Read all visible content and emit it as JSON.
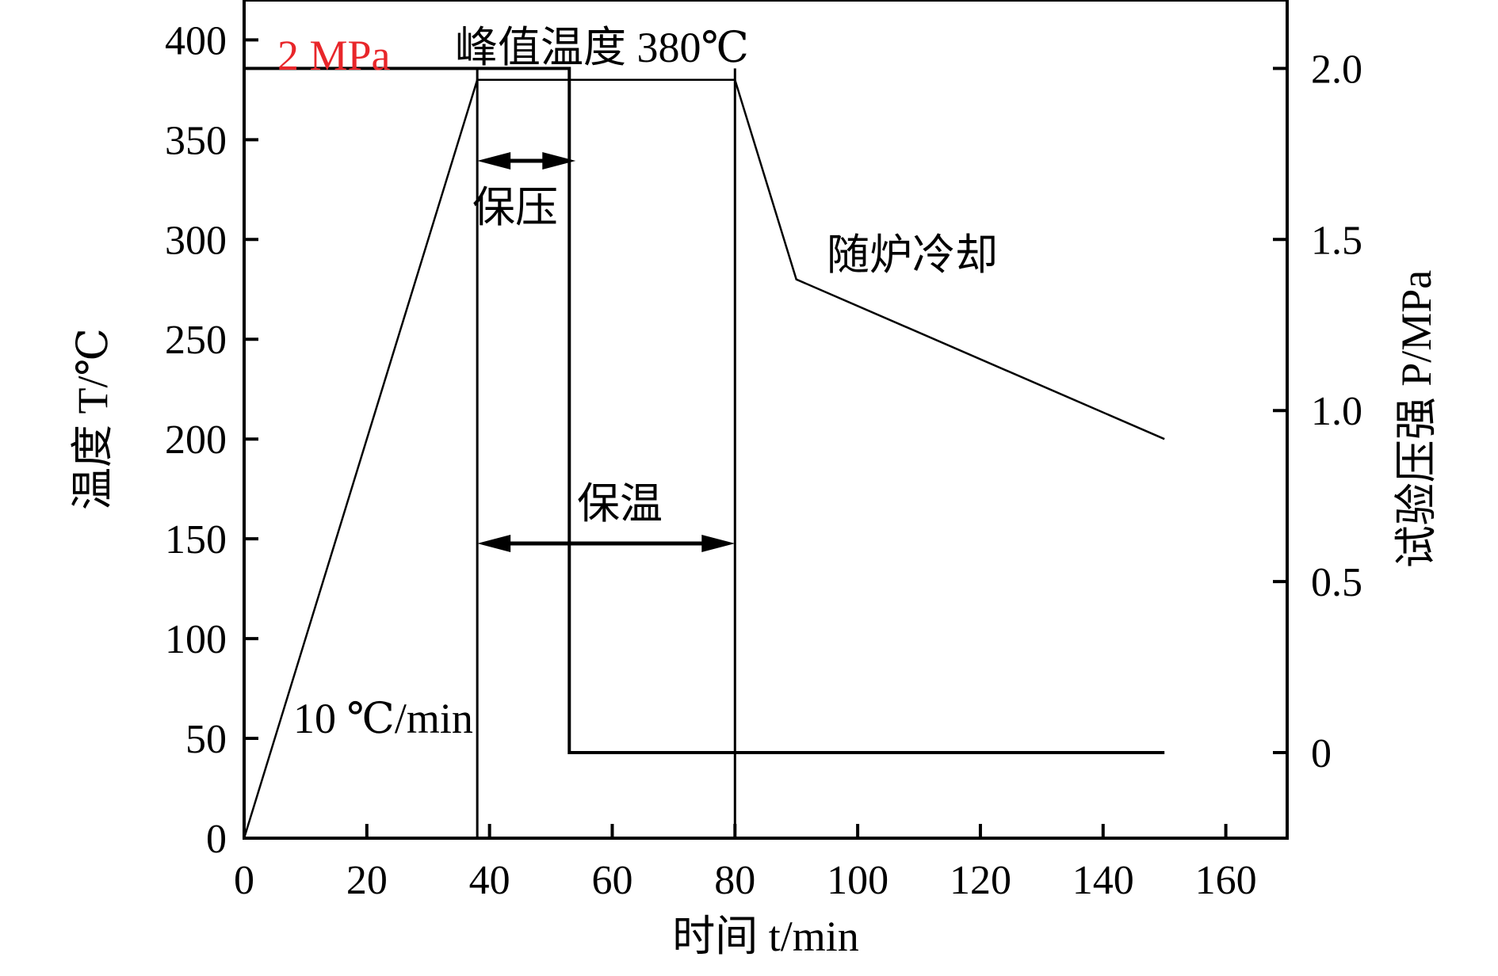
{
  "chart_data": {
    "type": "line",
    "xlabel": "时间 t/min",
    "ylabel": "温度 T/℃",
    "y2label": "试验压强 P/MPa",
    "xlim": [
      0,
      170
    ],
    "ylim": [
      0,
      420
    ],
    "y2lim": [
      -0.25,
      2.2
    ],
    "x_ticks": [
      0,
      20,
      40,
      60,
      80,
      100,
      120,
      140,
      160
    ],
    "y_ticks": [
      0,
      50,
      100,
      150,
      200,
      250,
      300,
      350,
      400
    ],
    "y2_ticks": [
      0,
      0.5,
      1.0,
      1.5,
      2.0
    ],
    "y2_tick_labels": [
      "0",
      "0.5",
      "1.0",
      "1.5",
      "2.0"
    ],
    "grid": false,
    "series": [
      {
        "axis": "left",
        "x": [
          0,
          38,
          80,
          90,
          150
        ],
        "y": [
          0,
          380,
          380,
          280,
          200
        ]
      },
      {
        "axis": "right",
        "x": [
          0,
          53,
          53,
          150
        ],
        "y": [
          2.0,
          2.0,
          0.0,
          0.0
        ]
      }
    ],
    "vertical_lines": [
      38,
      80
    ],
    "pressure_start_x": 38,
    "pressure_end_x": 53,
    "annotations": {
      "pressure_value": "2 MPa",
      "peak_temp": "峰值温度 380℃",
      "hold_pressure": "保压",
      "hold_temp": "保温",
      "furnace_cooling": "随炉冷却",
      "heating_rate": "10 ℃/min"
    },
    "intervals": {
      "hold_pressure": [
        38,
        53
      ],
      "hold_temp": [
        38,
        80
      ]
    },
    "colors": {
      "line": "#000000",
      "pressure_label": "#e8262a"
    }
  }
}
